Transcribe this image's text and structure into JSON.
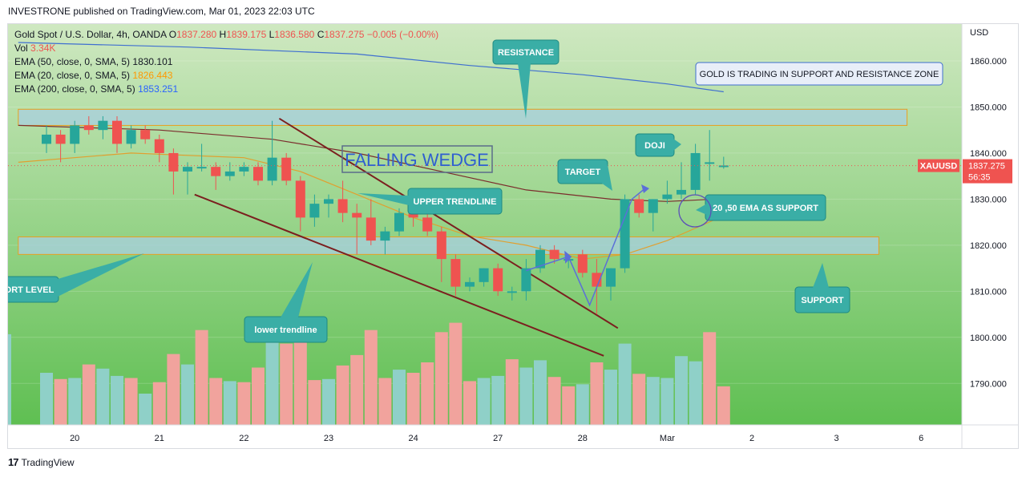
{
  "publisher_line": "INVESTRONE published on TradingView.com, Mar 01, 2023 22:03 UTC",
  "footer": {
    "logo": "17",
    "brand": "TradingView"
  },
  "legend": {
    "symbol": "Gold Spot / U.S. Dollar, 4h, OANDA",
    "open_label": "O",
    "open": "1837.280",
    "high_label": "H",
    "high": "1839.175",
    "low_label": "L",
    "low": "1836.580",
    "close_label": "C",
    "close": "1837.275",
    "change": "−0.005 (−0.00%)",
    "vol_label": "Vol",
    "vol": "3.34K",
    "ema50_label": "EMA (50, close, 0, SMA, 5)",
    "ema50": "1830.101",
    "ema20_label": "EMA (20, close, 0, SMA, 5)",
    "ema20": "1826.443",
    "ema200_label": "EMA (200, close, 0, SMA, 5)",
    "ema200": "1853.251"
  },
  "colors": {
    "bg_top": "#cfe8c1",
    "bg_bottom": "#5fbf52",
    "up": "#26a69a",
    "down": "#ef5350",
    "vol_up": "#8fd0c8",
    "vol_down": "#f1a39d",
    "ema50": "#7b2d2d",
    "ema20": "#e0a030",
    "ema200": "#3f6fd0",
    "zone_fill": "#a8cfe0",
    "zone_border": "#e8a020",
    "callout": "#3aaea6",
    "trend": "#7b1f1f",
    "path": "#5b6fd8"
  },
  "chart_data": {
    "type": "candlestick",
    "symbol": "XAUUSD",
    "timeframe": "4h",
    "y_unit": "USD",
    "ylim": [
      1781,
      1868
    ],
    "y_ticks": [
      1790,
      1800,
      1810,
      1820,
      1830,
      1840,
      1850,
      1860
    ],
    "y_tick_labels": [
      "1790.000",
      "1800.000",
      "1810.000",
      "1820.000",
      "1830.000",
      "1840.000",
      "1850.000",
      "1860.000"
    ],
    "x_labels": [
      {
        "label": "20",
        "bar": 2
      },
      {
        "label": "21",
        "bar": 8
      },
      {
        "label": "22",
        "bar": 14
      },
      {
        "label": "23",
        "bar": 20
      },
      {
        "label": "24",
        "bar": 26
      },
      {
        "label": "27",
        "bar": 32
      },
      {
        "label": "28",
        "bar": 38
      },
      {
        "label": "Mar",
        "bar": 44
      },
      {
        "label": "2",
        "bar": 50
      },
      {
        "label": "3",
        "bar": 56
      },
      {
        "label": "6",
        "bar": 62
      }
    ],
    "candles": [
      {
        "o": 1842.0,
        "h": 1846.0,
        "l": 1840.0,
        "c": 1844.0
      },
      {
        "o": 1844.0,
        "h": 1845.0,
        "l": 1838.0,
        "c": 1842.0
      },
      {
        "o": 1842.0,
        "h": 1847.0,
        "l": 1840.0,
        "c": 1846.0
      },
      {
        "o": 1846.0,
        "h": 1848.0,
        "l": 1844.0,
        "c": 1845.0
      },
      {
        "o": 1845.0,
        "h": 1848.0,
        "l": 1843.0,
        "c": 1847.0
      },
      {
        "o": 1847.0,
        "h": 1848.0,
        "l": 1840.0,
        "c": 1842.0
      },
      {
        "o": 1842.0,
        "h": 1846.0,
        "l": 1841.0,
        "c": 1845.0
      },
      {
        "o": 1845.0,
        "h": 1846.0,
        "l": 1842.0,
        "c": 1843.0
      },
      {
        "o": 1843.0,
        "h": 1844.0,
        "l": 1838.0,
        "c": 1840.0
      },
      {
        "o": 1840.0,
        "h": 1841.0,
        "l": 1831.0,
        "c": 1836.0
      },
      {
        "o": 1836.0,
        "h": 1838.0,
        "l": 1831.0,
        "c": 1837.0
      },
      {
        "o": 1837.0,
        "h": 1842.0,
        "l": 1836.0,
        "c": 1837.0
      },
      {
        "o": 1837.0,
        "h": 1838.0,
        "l": 1832.0,
        "c": 1835.0
      },
      {
        "o": 1835.0,
        "h": 1838.0,
        "l": 1834.0,
        "c": 1836.0
      },
      {
        "o": 1836.0,
        "h": 1838.0,
        "l": 1835.0,
        "c": 1837.0
      },
      {
        "o": 1837.0,
        "h": 1838.0,
        "l": 1833.0,
        "c": 1834.0
      },
      {
        "o": 1834.0,
        "h": 1847.0,
        "l": 1833.0,
        "c": 1839.0
      },
      {
        "o": 1839.0,
        "h": 1840.0,
        "l": 1833.0,
        "c": 1834.0
      },
      {
        "o": 1834.0,
        "h": 1835.0,
        "l": 1823.0,
        "c": 1826.0
      },
      {
        "o": 1826.0,
        "h": 1831.0,
        "l": 1824.0,
        "c": 1829.0
      },
      {
        "o": 1829.0,
        "h": 1831.0,
        "l": 1826.0,
        "c": 1830.0
      },
      {
        "o": 1830.0,
        "h": 1834.0,
        "l": 1825.0,
        "c": 1827.0
      },
      {
        "o": 1827.0,
        "h": 1829.0,
        "l": 1818.0,
        "c": 1826.0
      },
      {
        "o": 1826.0,
        "h": 1830.0,
        "l": 1820.0,
        "c": 1821.0
      },
      {
        "o": 1821.0,
        "h": 1824.0,
        "l": 1818.0,
        "c": 1823.0
      },
      {
        "o": 1823.0,
        "h": 1828.0,
        "l": 1822.0,
        "c": 1827.0
      },
      {
        "o": 1827.0,
        "h": 1829.0,
        "l": 1824.0,
        "c": 1826.0
      },
      {
        "o": 1826.0,
        "h": 1828.0,
        "l": 1822.0,
        "c": 1823.0
      },
      {
        "o": 1823.0,
        "h": 1824.0,
        "l": 1812.0,
        "c": 1817.0
      },
      {
        "o": 1817.0,
        "h": 1818.0,
        "l": 1809.0,
        "c": 1811.0
      },
      {
        "o": 1811.0,
        "h": 1813.0,
        "l": 1810.0,
        "c": 1812.0
      },
      {
        "o": 1812.0,
        "h": 1815.0,
        "l": 1811.0,
        "c": 1815.0
      },
      {
        "o": 1815.0,
        "h": 1816.0,
        "l": 1809.0,
        "c": 1810.0
      },
      {
        "o": 1810.0,
        "h": 1811.0,
        "l": 1808.0,
        "c": 1810.0
      },
      {
        "o": 1810.0,
        "h": 1817.0,
        "l": 1808.0,
        "c": 1815.0
      },
      {
        "o": 1815.0,
        "h": 1820.0,
        "l": 1814.0,
        "c": 1819.0
      },
      {
        "o": 1819.0,
        "h": 1820.0,
        "l": 1816.0,
        "c": 1817.0
      },
      {
        "o": 1817.0,
        "h": 1818.0,
        "l": 1815.0,
        "c": 1817.0
      },
      {
        "o": 1818.0,
        "h": 1819.0,
        "l": 1813.0,
        "c": 1814.0
      },
      {
        "o": 1814.0,
        "h": 1817.0,
        "l": 1805.0,
        "c": 1811.0
      },
      {
        "o": 1811.0,
        "h": 1815.0,
        "l": 1808.0,
        "c": 1815.0
      },
      {
        "o": 1815.0,
        "h": 1831.0,
        "l": 1814.0,
        "c": 1830.0
      },
      {
        "o": 1830.0,
        "h": 1831.0,
        "l": 1826.0,
        "c": 1827.0
      },
      {
        "o": 1827.0,
        "h": 1830.0,
        "l": 1823.0,
        "c": 1830.0
      },
      {
        "o": 1830.0,
        "h": 1834.0,
        "l": 1829.0,
        "c": 1831.0
      },
      {
        "o": 1831.0,
        "h": 1838.0,
        "l": 1830.0,
        "c": 1832.0
      },
      {
        "o": 1832.0,
        "h": 1842.0,
        "l": 1831.0,
        "c": 1840.0
      },
      {
        "o": 1838.0,
        "h": 1845.0,
        "l": 1834.0,
        "c": 1838.0
      },
      {
        "o": 1837.3,
        "h": 1839.2,
        "l": 1836.6,
        "c": 1837.3
      }
    ],
    "volume": [
      {
        "v": 0.5,
        "up": true
      },
      {
        "v": 0.44,
        "up": false
      },
      {
        "v": 0.45,
        "up": true
      },
      {
        "v": 0.58,
        "up": false
      },
      {
        "v": 0.54,
        "up": true
      },
      {
        "v": 0.47,
        "up": true
      },
      {
        "v": 0.45,
        "up": false
      },
      {
        "v": 0.3,
        "up": true
      },
      {
        "v": 0.41,
        "up": false
      },
      {
        "v": 0.68,
        "up": false
      },
      {
        "v": 0.58,
        "up": true
      },
      {
        "v": 0.91,
        "up": false
      },
      {
        "v": 0.45,
        "up": false
      },
      {
        "v": 0.42,
        "up": true
      },
      {
        "v": 0.41,
        "up": false
      },
      {
        "v": 0.55,
        "up": false
      },
      {
        "v": 0.81,
        "up": true
      },
      {
        "v": 0.78,
        "up": false
      },
      {
        "v": 0.8,
        "up": false
      },
      {
        "v": 0.43,
        "up": false
      },
      {
        "v": 0.44,
        "up": true
      },
      {
        "v": 0.57,
        "up": false
      },
      {
        "v": 0.67,
        "up": false
      },
      {
        "v": 0.91,
        "up": false
      },
      {
        "v": 0.45,
        "up": false
      },
      {
        "v": 0.53,
        "up": true
      },
      {
        "v": 0.5,
        "up": false
      },
      {
        "v": 0.6,
        "up": false
      },
      {
        "v": 0.89,
        "up": false
      },
      {
        "v": 0.98,
        "up": false
      },
      {
        "v": 0.42,
        "up": false
      },
      {
        "v": 0.45,
        "up": true
      },
      {
        "v": 0.47,
        "up": true
      },
      {
        "v": 0.63,
        "up": false
      },
      {
        "v": 0.55,
        "up": true
      },
      {
        "v": 0.62,
        "up": true
      },
      {
        "v": 0.46,
        "up": false
      },
      {
        "v": 0.37,
        "up": false
      },
      {
        "v": 0.39,
        "up": true
      },
      {
        "v": 0.6,
        "up": false
      },
      {
        "v": 0.53,
        "up": true
      },
      {
        "v": 0.78,
        "up": true
      },
      {
        "v": 0.49,
        "up": false
      },
      {
        "v": 0.46,
        "up": true
      },
      {
        "v": 0.45,
        "up": true
      },
      {
        "v": 0.66,
        "up": true
      },
      {
        "v": 0.61,
        "up": true
      },
      {
        "v": 0.89,
        "up": false
      },
      {
        "v": 0.37,
        "up": false
      }
    ],
    "ema200": [
      [
        -2,
        1864.0
      ],
      [
        10,
        1863.0
      ],
      [
        22,
        1861.5
      ],
      [
        30,
        1859.0
      ],
      [
        38,
        1857.0
      ],
      [
        44,
        1855.0
      ],
      [
        48,
        1853.3
      ]
    ],
    "ema50": [
      [
        -2,
        1846.0
      ],
      [
        8,
        1845.0
      ],
      [
        16,
        1843.0
      ],
      [
        22,
        1840.0
      ],
      [
        28,
        1836.0
      ],
      [
        34,
        1832.0
      ],
      [
        40,
        1830.0
      ],
      [
        44,
        1829.5
      ],
      [
        48,
        1830.1
      ]
    ],
    "ema20": [
      [
        -2,
        1838.0
      ],
      [
        6,
        1840.0
      ],
      [
        14,
        1839.0
      ],
      [
        18,
        1836.0
      ],
      [
        22,
        1831.0
      ],
      [
        26,
        1826.0
      ],
      [
        30,
        1822.0
      ],
      [
        34,
        1820.0
      ],
      [
        38,
        1817.0
      ],
      [
        41,
        1818.0
      ],
      [
        44,
        1821.0
      ],
      [
        48,
        1826.4
      ]
    ],
    "zones": [
      {
        "name": "resistance-zone",
        "x0": -2,
        "x1": 61,
        "y0": 1846.0,
        "y1": 1849.5
      },
      {
        "name": "support-zone",
        "x0": -2,
        "x1": 59,
        "y0": 1818.0,
        "y1": 1821.8
      }
    ],
    "trendlines": [
      {
        "name": "upper-trendline",
        "x0": 16.5,
        "y0": 1847.5,
        "x1": 40.5,
        "y1": 1802.0
      },
      {
        "name": "lower-trendline",
        "x0": 10.5,
        "y0": 1831.0,
        "x1": 39.5,
        "y1": 1796.0
      }
    ],
    "path": [
      [
        34,
        1814.5
      ],
      [
        37,
        1817.5
      ],
      [
        38.5,
        1807.0
      ],
      [
        41.5,
        1830.0
      ],
      [
        42.5,
        1832.5
      ]
    ],
    "last_price_label": "XAUUSD",
    "last_price": 1837.275,
    "last_price_text": "1837.275",
    "countdown": "56:35",
    "annotations": {
      "resistance": "RESISTANCE",
      "zone_note": "GOLD IS TRADING IN SUPPORT AND RESISTANCE ZONE",
      "wedge": "FALLING WEDGE",
      "doji": "DOJI",
      "target": "TARGET",
      "upper_trendline": "UPPER TRENDLINE",
      "ema_support": "20 ,50 EMA AS SUPPORT",
      "support_level": "ORT LEVEL",
      "lower_trendline": "lower trendline",
      "support": "SUPPORT"
    }
  }
}
